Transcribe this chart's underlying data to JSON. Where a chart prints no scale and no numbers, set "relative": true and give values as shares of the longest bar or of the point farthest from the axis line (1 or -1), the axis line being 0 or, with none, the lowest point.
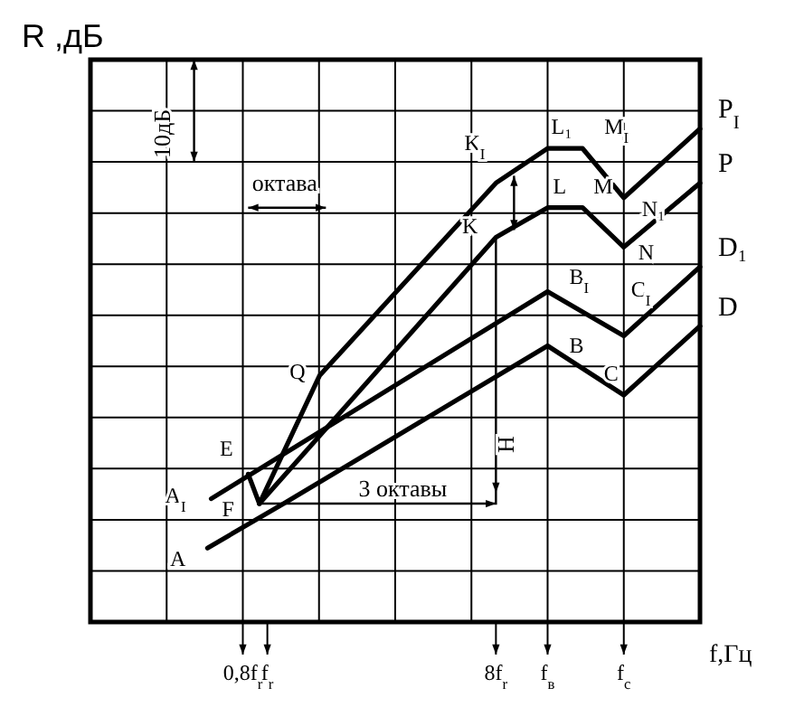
{
  "chart_data": {
    "type": "line",
    "relative": true,
    "log": "x",
    "ylabel": "R ,дБ",
    "xlabel": "f,Гц",
    "xlim": [
      0.2,
      51.2
    ],
    "xticks": [
      {
        "value": 0.2,
        "label": null
      },
      {
        "value": 0.4,
        "label": null
      },
      {
        "value": 0.8,
        "label": null
      },
      {
        "value": 1.6,
        "label": null
      },
      {
        "value": 3.2,
        "label": null
      },
      {
        "value": 6.4,
        "label": null
      },
      {
        "value": 12.8,
        "label": null
      },
      {
        "value": 25.6,
        "label": null
      },
      {
        "value": 51.2,
        "label": null
      },
      {
        "value": 0.8,
        "label": "0,8f$_{r}$"
      },
      {
        "value": 1,
        "label": "f$_{r}$"
      },
      {
        "value": 8,
        "label": "8f$_{r}$"
      },
      {
        "value": 12.8,
        "label": "f$_{в}$"
      },
      {
        "value": 25.6,
        "label": "f$_{с}$"
      }
    ],
    "grid": true,
    "marker": "none",
    "line_style": "solid",
    "series": [
      {
        "name": "P$_{I}$",
        "color": "#000000",
        "x": [
          0.93,
          1.61,
          8,
          12.8,
          17.6,
          25.6,
          51.2
        ],
        "values": [
          0.24,
          0.5,
          0.89,
          0.96,
          0.96,
          0.86,
          1
        ]
      },
      {
        "name": "P",
        "color": "#000000",
        "x": [
          0.93,
          8,
          12.8,
          17.6,
          25.6,
          51.2
        ],
        "values": [
          0.24,
          0.78,
          0.84,
          0.84,
          0.76,
          0.89
        ]
      },
      {
        "name": "D₁",
        "color": "#000000",
        "x": [
          0.6,
          12.8,
          25.6,
          51.2
        ],
        "values": [
          0.25,
          0.67,
          0.58,
          0.72
        ]
      },
      {
        "name": "D",
        "color": "#000000",
        "x": [
          0.58,
          1.16,
          12.8,
          25.6,
          51.2
        ],
        "values": [
          0.15,
          0.24,
          0.56,
          0.46,
          0.6
        ]
      },
      {
        "color": "#000000",
        "x": [
          0.84,
          0.93
        ],
        "values": [
          0.3,
          0.24
        ]
      }
    ],
    "annotations": [
      {
        "text": "A",
        "x": 0.58,
        "y": 0.15
      },
      {
        "text": "A$_{I}$",
        "x": 0.6,
        "y": 0.25
      },
      {
        "text": "E",
        "x": 0.84,
        "y": 0.3
      },
      {
        "text": "F",
        "x": 0.93,
        "y": 0.24
      },
      {
        "text": "Q",
        "x": 1.61,
        "y": 0.5
      },
      {
        "text": "K",
        "x": 8,
        "y": 0.78
      },
      {
        "text": "K$_{I}$",
        "x": 8,
        "y": 0.89
      },
      {
        "text": "L₁",
        "x": 12.8,
        "y": 0.96
      },
      {
        "text": "M$_{I}$",
        "x": 17.6,
        "y": 0.96
      },
      {
        "text": "N₁",
        "x": 25.6,
        "y": 0.86
      },
      {
        "text": "L",
        "x": 12.8,
        "y": 0.84
      },
      {
        "text": "M",
        "x": 17.6,
        "y": 0.84
      },
      {
        "text": "N",
        "x": 25.6,
        "y": 0.76
      },
      {
        "text": "B$_{I}$",
        "x": 12.8,
        "y": 0.67
      },
      {
        "text": "C$_{I}$",
        "x": 25.6,
        "y": 0.58
      },
      {
        "text": "B",
        "x": 12.8,
        "y": 0.56
      },
      {
        "text": "C",
        "x": 25.6,
        "y": 0.46
      },
      "октава",
      "10дБ",
      "3 октавы",
      "Н"
    ]
  }
}
